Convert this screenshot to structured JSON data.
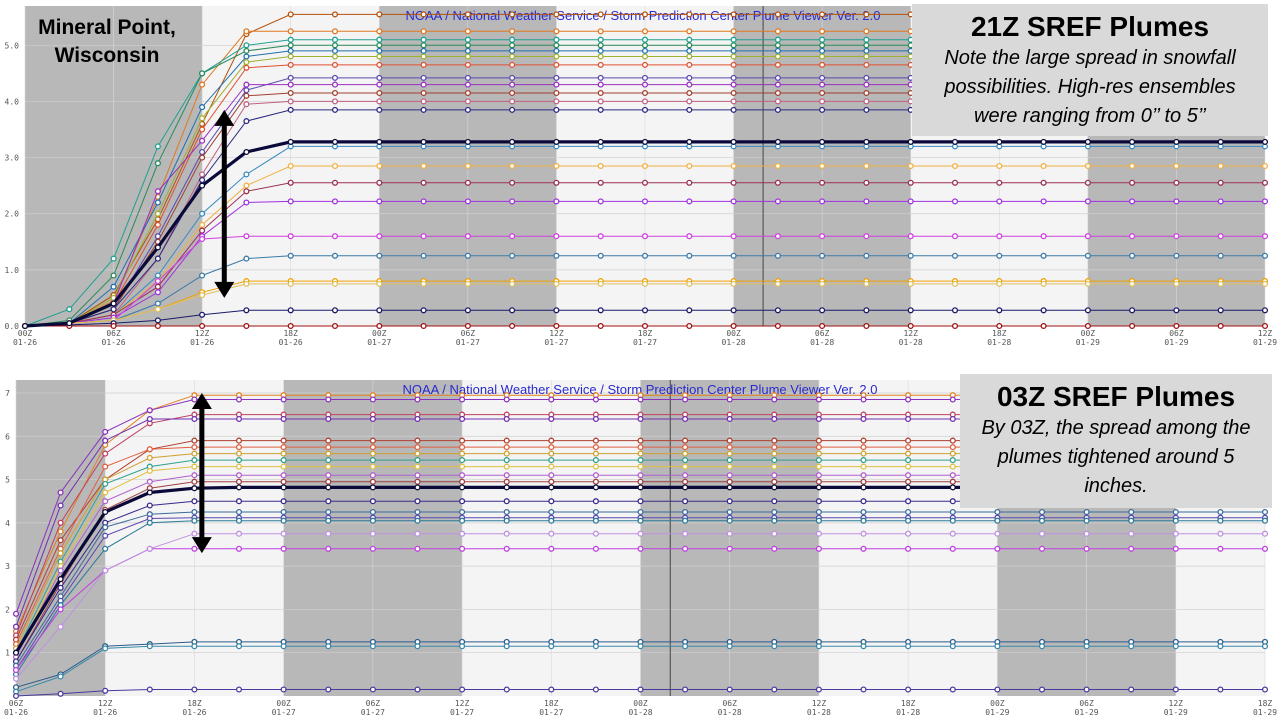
{
  "location": {
    "line1": "Mineral Point,",
    "line2": "Wisconsin"
  },
  "top_annotation": {
    "title": "21Z SREF Plumes",
    "note_lines": [
      "Note the large spread in snowfall",
      "possibilities. High-res ensembles",
      "were ranging from 0’’ to 5’’"
    ]
  },
  "bottom_annotation": {
    "title": "03Z SREF Plumes",
    "note_lines": [
      "By 03Z, the spread among the",
      "plumes tightened around 5",
      "inches."
    ]
  },
  "colors": {
    "mean": "#0a0a3a",
    "night_shade": "#b8b8b8",
    "viewer_title": "#2a2ad0",
    "arrow": "#000000"
  },
  "chart_data": [
    {
      "type": "line",
      "title": "NOAA / National Weather Service / Storm Prediction Center Plume Viewer Ver. 2.0",
      "run": "21Z",
      "x_ticks": [
        [
          "00Z",
          "01-26"
        ],
        [
          "06Z",
          "01-26"
        ],
        [
          "12Z",
          "01-26"
        ],
        [
          "18Z",
          "01-26"
        ],
        [
          "00Z",
          "01-27"
        ],
        [
          "06Z",
          "01-27"
        ],
        [
          "12Z",
          "01-27"
        ],
        [
          "18Z",
          "01-27"
        ],
        [
          "00Z",
          "01-28"
        ],
        [
          "06Z",
          "01-28"
        ],
        [
          "12Z",
          "01-28"
        ],
        [
          "18Z",
          "01-28"
        ],
        [
          "00Z",
          "01-29"
        ],
        [
          "06Z",
          "01-29"
        ],
        [
          "12Z",
          "01-29"
        ]
      ],
      "y_ticks": [
        "0.0",
        "1.0",
        "2.0",
        "3.0",
        "4.0",
        "5.0"
      ],
      "ylim": [
        0,
        5.7
      ],
      "x_hours": [
        0,
        3,
        6,
        9,
        12,
        15,
        18,
        21,
        24,
        27,
        30,
        33,
        36,
        39,
        42,
        45,
        48,
        51,
        54,
        57,
        60,
        63,
        66,
        69,
        72,
        75,
        78,
        81,
        84
      ],
      "ramp_hours": [
        0,
        3,
        6,
        9,
        12,
        15,
        18
      ],
      "shade_hours": [
        [
          0,
          12
        ],
        [
          24,
          36
        ],
        [
          48,
          60
        ],
        [
          72,
          84
        ]
      ],
      "vline_hour": 50,
      "arrow": {
        "hour": 13.5,
        "from": 3.85,
        "to": 0.5
      },
      "mean": {
        "name": "mean",
        "final": 3.28,
        "ramp": [
          0,
          0.05,
          0.4,
          1.4,
          2.5,
          3.1,
          3.28
        ]
      },
      "series": [
        {
          "color": "#b4500a",
          "final": 5.55,
          "ramp": [
            0,
            0.05,
            0.55,
            1.9,
            3.6,
            5.2,
            5.55
          ]
        },
        {
          "color": "#e07820",
          "final": 5.25,
          "ramp": [
            0,
            0.05,
            0.45,
            2.3,
            4.3,
            5.25,
            5.25
          ]
        },
        {
          "color": "#20a090",
          "final": 5.1,
          "ramp": [
            0,
            0.3,
            1.2,
            3.2,
            4.5,
            5.0,
            5.1
          ]
        },
        {
          "color": "#2a8a5a",
          "final": 5.0,
          "ramp": [
            0,
            0.1,
            0.9,
            2.9,
            4.5,
            4.9,
            5.0
          ]
        },
        {
          "color": "#1f6fae",
          "final": 4.9,
          "ramp": [
            0,
            0.05,
            0.7,
            2.2,
            3.9,
            4.8,
            4.9
          ]
        },
        {
          "color": "#a0b030",
          "final": 4.8,
          "ramp": [
            0,
            0.05,
            0.5,
            2.0,
            3.7,
            4.7,
            4.8
          ]
        },
        {
          "color": "#e05030",
          "final": 4.65,
          "ramp": [
            0,
            0.05,
            0.4,
            1.8,
            3.5,
            4.6,
            4.65
          ]
        },
        {
          "color": "#5a4ab0",
          "final": 4.42,
          "ramp": [
            0,
            0.05,
            0.3,
            1.6,
            3.1,
            4.2,
            4.42
          ]
        },
        {
          "color": "#9a30c0",
          "final": 4.3,
          "ramp": [
            0,
            0.05,
            0.4,
            2.4,
            3.3,
            4.3,
            4.3
          ]
        },
        {
          "color": "#a04030",
          "final": 4.15,
          "ramp": [
            0,
            0.05,
            0.3,
            1.5,
            3.0,
            4.1,
            4.15
          ]
        },
        {
          "color": "#c06080",
          "final": 4.0,
          "ramp": [
            0,
            0.05,
            0.2,
            1.2,
            2.7,
            3.95,
            4.0
          ]
        },
        {
          "color": "#2a2a80",
          "final": 3.85,
          "ramp": [
            0,
            0.05,
            0.3,
            1.2,
            2.6,
            3.65,
            3.85
          ]
        },
        {
          "color": "#3a8ac0",
          "final": 3.2,
          "ramp": [
            0,
            0.05,
            0.2,
            0.9,
            2.0,
            2.7,
            3.2
          ]
        },
        {
          "color": "#f0b040",
          "final": 2.85,
          "ramp": [
            0,
            0.05,
            0.2,
            0.8,
            1.8,
            2.5,
            2.85
          ]
        },
        {
          "color": "#9a3050",
          "final": 2.55,
          "ramp": [
            0,
            0.05,
            0.2,
            0.7,
            1.7,
            2.4,
            2.55
          ]
        },
        {
          "color": "#a030e0",
          "final": 2.22,
          "ramp": [
            0,
            0.05,
            0.15,
            0.6,
            1.6,
            2.2,
            2.22
          ]
        },
        {
          "color": "#d040e0",
          "final": 1.6,
          "ramp": [
            0,
            0.05,
            0.1,
            0.8,
            1.55,
            1.6,
            1.6
          ]
        },
        {
          "color": "#3a7aa8",
          "final": 1.25,
          "ramp": [
            0,
            0.05,
            0.1,
            0.4,
            0.9,
            1.2,
            1.25
          ]
        },
        {
          "color": "#f0a000",
          "final": 0.8,
          "ramp": [
            0,
            0.05,
            0.1,
            0.3,
            0.6,
            0.8,
            0.8
          ]
        },
        {
          "color": "#e0c060",
          "final": 0.75,
          "ramp": [
            0,
            0.05,
            0.1,
            0.3,
            0.55,
            0.75,
            0.75
          ]
        },
        {
          "color": "#1a1a6a",
          "final": 0.28,
          "ramp": [
            0,
            0.02,
            0.05,
            0.1,
            0.2,
            0.28,
            0.28
          ]
        },
        {
          "color": "#a01010",
          "final": 0.0,
          "ramp": [
            0,
            0,
            0,
            0,
            0,
            0,
            0
          ]
        }
      ]
    },
    {
      "type": "line",
      "title": "NOAA / National Weather Service / Storm Prediction Center Plume Viewer Ver. 2.0",
      "run": "03Z",
      "x_ticks": [
        [
          "06Z",
          "01-26"
        ],
        [
          "12Z",
          "01-26"
        ],
        [
          "18Z",
          "01-26"
        ],
        [
          "00Z",
          "01-27"
        ],
        [
          "06Z",
          "01-27"
        ],
        [
          "12Z",
          "01-27"
        ],
        [
          "18Z",
          "01-27"
        ],
        [
          "00Z",
          "01-28"
        ],
        [
          "06Z",
          "01-28"
        ],
        [
          "12Z",
          "01-28"
        ],
        [
          "18Z",
          "01-28"
        ],
        [
          "00Z",
          "01-29"
        ],
        [
          "06Z",
          "01-29"
        ],
        [
          "12Z",
          "01-29"
        ],
        [
          "18Z",
          "01-29"
        ]
      ],
      "y_ticks": [
        "1",
        "2",
        "3",
        "4",
        "5",
        "6",
        "7"
      ],
      "ylim": [
        0,
        7.3
      ],
      "x_hours": [
        0,
        3,
        6,
        9,
        12,
        15,
        18,
        21,
        24,
        27,
        30,
        33,
        36,
        39,
        42,
        45,
        48,
        51,
        54,
        57,
        60,
        63,
        66,
        69,
        72,
        75,
        78,
        81,
        84
      ],
      "ramp_hours": [
        0,
        3,
        6,
        9,
        12
      ],
      "shade_hours": [
        [
          0,
          6
        ],
        [
          18,
          30
        ],
        [
          42,
          54
        ],
        [
          66,
          78
        ]
      ],
      "vline_hour": 44,
      "arrow": {
        "hour": 12.5,
        "from": 7.0,
        "to": 3.3
      },
      "mean": {
        "name": "mean",
        "final": 4.82,
        "ramp": [
          1.0,
          2.7,
          4.25,
          4.7,
          4.8
        ]
      },
      "series": [
        {
          "color": "#e08020",
          "final": 6.95,
          "ramp": [
            1.5,
            3.8,
            5.8,
            6.6,
            6.95
          ]
        },
        {
          "color": "#8a30c0",
          "final": 6.85,
          "ramp": [
            1.9,
            4.7,
            6.1,
            6.6,
            6.85
          ]
        },
        {
          "color": "#c04060",
          "final": 6.5,
          "ramp": [
            1.4,
            4.0,
            5.6,
            6.3,
            6.5
          ]
        },
        {
          "color": "#7030b0",
          "final": 6.4,
          "ramp": [
            1.6,
            4.4,
            5.9,
            6.4,
            6.4
          ]
        },
        {
          "color": "#b04030",
          "final": 5.9,
          "ramp": [
            1.3,
            3.6,
            5.0,
            5.7,
            5.9
          ]
        },
        {
          "color": "#e06040",
          "final": 5.75,
          "ramp": [
            1.2,
            3.4,
            5.3,
            5.7,
            5.75
          ]
        },
        {
          "color": "#d0a030",
          "final": 5.6,
          "ramp": [
            1.1,
            3.3,
            5.0,
            5.5,
            5.6
          ]
        },
        {
          "color": "#30a090",
          "final": 5.45,
          "ramp": [
            1.0,
            3.1,
            4.9,
            5.3,
            5.45
          ]
        },
        {
          "color": "#e0c040",
          "final": 5.3,
          "ramp": [
            0.9,
            3.0,
            4.7,
            5.2,
            5.3
          ]
        },
        {
          "color": "#b060d0",
          "final": 5.1,
          "ramp": [
            0.9,
            2.9,
            4.5,
            4.95,
            5.1
          ]
        },
        {
          "color": "#a04040",
          "final": 4.95,
          "ramp": [
            0.8,
            2.6,
            4.3,
            4.8,
            4.95
          ]
        },
        {
          "color": "#3a2a8a",
          "final": 4.5,
          "ramp": [
            0.8,
            2.5,
            4.0,
            4.4,
            4.5
          ]
        },
        {
          "color": "#3a6a9a",
          "final": 4.25,
          "ramp": [
            0.7,
            2.3,
            3.9,
            4.2,
            4.25
          ]
        },
        {
          "color": "#5a4ab0",
          "final": 4.12,
          "ramp": [
            0.6,
            2.2,
            3.7,
            4.1,
            4.12
          ]
        },
        {
          "color": "#2a7a9a",
          "final": 4.05,
          "ramp": [
            0.5,
            2.1,
            3.4,
            4.0,
            4.05
          ]
        },
        {
          "color": "#c040e0",
          "final": 3.4,
          "ramp": [
            0.6,
            2.0,
            2.9,
            3.4,
            3.4
          ]
        },
        {
          "color": "#c090e0",
          "final": 3.75,
          "ramp": [
            0.4,
            1.6,
            2.9,
            3.4,
            3.75
          ]
        },
        {
          "color": "#2a5a8a",
          "final": 1.25,
          "ramp": [
            0.2,
            0.5,
            1.15,
            1.2,
            1.25
          ]
        },
        {
          "color": "#3a8aa8",
          "final": 1.15,
          "ramp": [
            0.1,
            0.45,
            1.1,
            1.15,
            1.15
          ]
        },
        {
          "color": "#4a3aa0",
          "final": 0.15,
          "ramp": [
            0.0,
            0.05,
            0.12,
            0.15,
            0.15
          ]
        }
      ]
    }
  ]
}
